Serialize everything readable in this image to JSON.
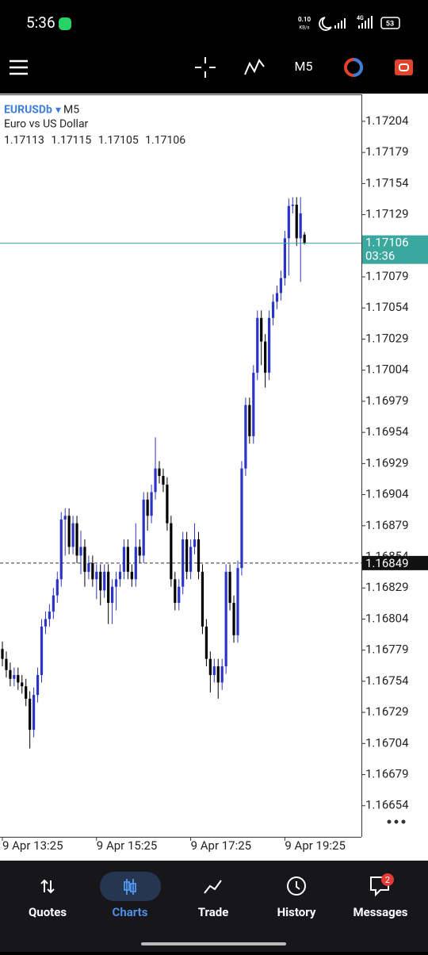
{
  "status_bar": {
    "time": "5:36",
    "speed": "0.10",
    "speed_unit": "KB/s",
    "network": "4G",
    "battery": "53"
  },
  "toolbar": {
    "timeframe": "M5"
  },
  "chart_data": {
    "type": "candlestick",
    "symbol": "EURUSDb",
    "timeframe": "M5",
    "description": "Euro vs US Dollar",
    "up_color": "#2a35c8",
    "down_color": "#000000",
    "candles": {
      "open": [
        1.1678,
        1.16772,
        1.16763,
        1.16756,
        1.16759,
        1.16753,
        1.1675,
        1.1674,
        1.16715,
        1.16743,
        1.16759,
        1.16798,
        1.16804,
        1.1681,
        1.16823,
        1.16836,
        1.16884,
        1.16887,
        1.16862,
        1.16881,
        1.16855,
        1.16862,
        1.16842,
        1.16849,
        1.16836,
        1.16842,
        1.16827,
        1.16842,
        1.16817,
        1.1683,
        1.16836,
        1.16842,
        1.16862,
        1.16842,
        1.16836,
        1.16862,
        1.16855,
        1.169,
        1.16887,
        1.16906,
        1.16925,
        1.16919,
        1.16912,
        1.16881,
        1.16836,
        1.16817,
        1.1683,
        1.16868,
        1.16842,
        1.16862,
        1.16868,
        1.16842,
        1.16798,
        1.16772,
        1.16759,
        1.16766,
        1.16753,
        1.16766,
        1.16842,
        1.16817,
        1.16791,
        1.16845,
        1.16925,
        1.16976,
        1.16951,
        1.17002,
        1.17046,
        1.17027,
        1.17002,
        1.17046,
        1.17059,
        1.17066,
        1.17078,
        1.1711,
        1.17136,
        1.17137,
        1.1711,
        1.17113
      ],
      "high": [
        1.16786,
        1.16778,
        1.16769,
        1.16765,
        1.16765,
        1.16759,
        1.16756,
        1.16746,
        1.16749,
        1.16765,
        1.16804,
        1.1681,
        1.16816,
        1.16829,
        1.16842,
        1.1689,
        1.16893,
        1.16893,
        1.16887,
        1.16887,
        1.16875,
        1.16868,
        1.16855,
        1.16855,
        1.16848,
        1.16848,
        1.16848,
        1.16848,
        1.16836,
        1.16842,
        1.16848,
        1.16868,
        1.16868,
        1.16848,
        1.16881,
        1.16868,
        1.16906,
        1.16906,
        1.16912,
        1.1695,
        1.16931,
        1.16925,
        1.16918,
        1.16887,
        1.16842,
        1.16836,
        1.16874,
        1.16874,
        1.16868,
        1.16881,
        1.16874,
        1.16848,
        1.16804,
        1.16778,
        1.16772,
        1.16772,
        1.16772,
        1.16848,
        1.16848,
        1.16823,
        1.16851,
        1.16931,
        1.16982,
        1.16982,
        1.17008,
        1.17052,
        1.17052,
        1.17033,
        1.17052,
        1.17065,
        1.17072,
        1.17084,
        1.17116,
        1.17142,
        1.17143,
        1.17143,
        1.17143,
        1.17115
      ],
      "low": [
        1.16766,
        1.16757,
        1.1675,
        1.1675,
        1.16747,
        1.16744,
        1.16734,
        1.167,
        1.16709,
        1.16737,
        1.16753,
        1.16792,
        1.16798,
        1.16804,
        1.16817,
        1.1683,
        1.16855,
        1.16856,
        1.16856,
        1.16849,
        1.1684,
        1.1683,
        1.16836,
        1.1683,
        1.1682,
        1.16815,
        1.16821,
        1.168,
        1.168,
        1.16811,
        1.1683,
        1.16836,
        1.16836,
        1.1683,
        1.1683,
        1.16849,
        1.16849,
        1.16875,
        1.16881,
        1.169,
        1.16913,
        1.16906,
        1.16875,
        1.1683,
        1.16811,
        1.16811,
        1.16824,
        1.16836,
        1.16836,
        1.16856,
        1.16836,
        1.16792,
        1.16766,
        1.16745,
        1.16753,
        1.1674,
        1.16747,
        1.1676,
        1.16811,
        1.16785,
        1.16785,
        1.16839,
        1.16919,
        1.16945,
        1.16945,
        1.16996,
        1.17008,
        1.1699,
        1.16996,
        1.1704,
        1.17053,
        1.1706,
        1.17072,
        1.1708,
        1.1713,
        1.17104,
        1.17075,
        1.17105
      ],
      "close": [
        1.16772,
        1.16763,
        1.16756,
        1.16759,
        1.16753,
        1.1675,
        1.1674,
        1.16715,
        1.16743,
        1.16759,
        1.16798,
        1.16804,
        1.1681,
        1.16823,
        1.16836,
        1.16884,
        1.16887,
        1.16862,
        1.16881,
        1.16855,
        1.16862,
        1.16842,
        1.16849,
        1.16836,
        1.16842,
        1.16827,
        1.16842,
        1.16817,
        1.1683,
        1.16836,
        1.16842,
        1.16862,
        1.16842,
        1.16836,
        1.16862,
        1.16855,
        1.169,
        1.16887,
        1.16906,
        1.16925,
        1.16919,
        1.16912,
        1.16881,
        1.16836,
        1.16817,
        1.1683,
        1.16868,
        1.16842,
        1.16862,
        1.16868,
        1.16842,
        1.16798,
        1.16772,
        1.16759,
        1.16766,
        1.16753,
        1.16766,
        1.16842,
        1.16817,
        1.16791,
        1.16845,
        1.16925,
        1.16976,
        1.16951,
        1.17002,
        1.17046,
        1.17027,
        1.17002,
        1.17046,
        1.17059,
        1.17066,
        1.17078,
        1.1711,
        1.17136,
        1.17137,
        1.1711,
        1.1713,
        1.17106
      ]
    },
    "bid_timer": "03:36",
    "bid_color": "#3aa89e",
    "level_line": 1.16849,
    "x_labels": [
      "9 Apr 13:25",
      "9 Apr 15:25",
      "9 Apr 17:25",
      "9 Apr 19:25"
    ],
    "ylim": [
      1.16629,
      1.17225
    ],
    "yticks": [
      1.17204,
      1.17179,
      1.17154,
      1.17129,
      1.17104,
      1.17079,
      1.17054,
      1.17029,
      1.17004,
      1.16979,
      1.16954,
      1.16929,
      1.16904,
      1.16879,
      1.16854,
      1.16829,
      1.16804,
      1.16779,
      1.16754,
      1.16729,
      1.16704,
      1.16679,
      1.16654
    ]
  },
  "nav": {
    "items": [
      "Quotes",
      "Charts",
      "Trade",
      "History",
      "Messages"
    ],
    "active": "Charts",
    "badge": "2"
  }
}
